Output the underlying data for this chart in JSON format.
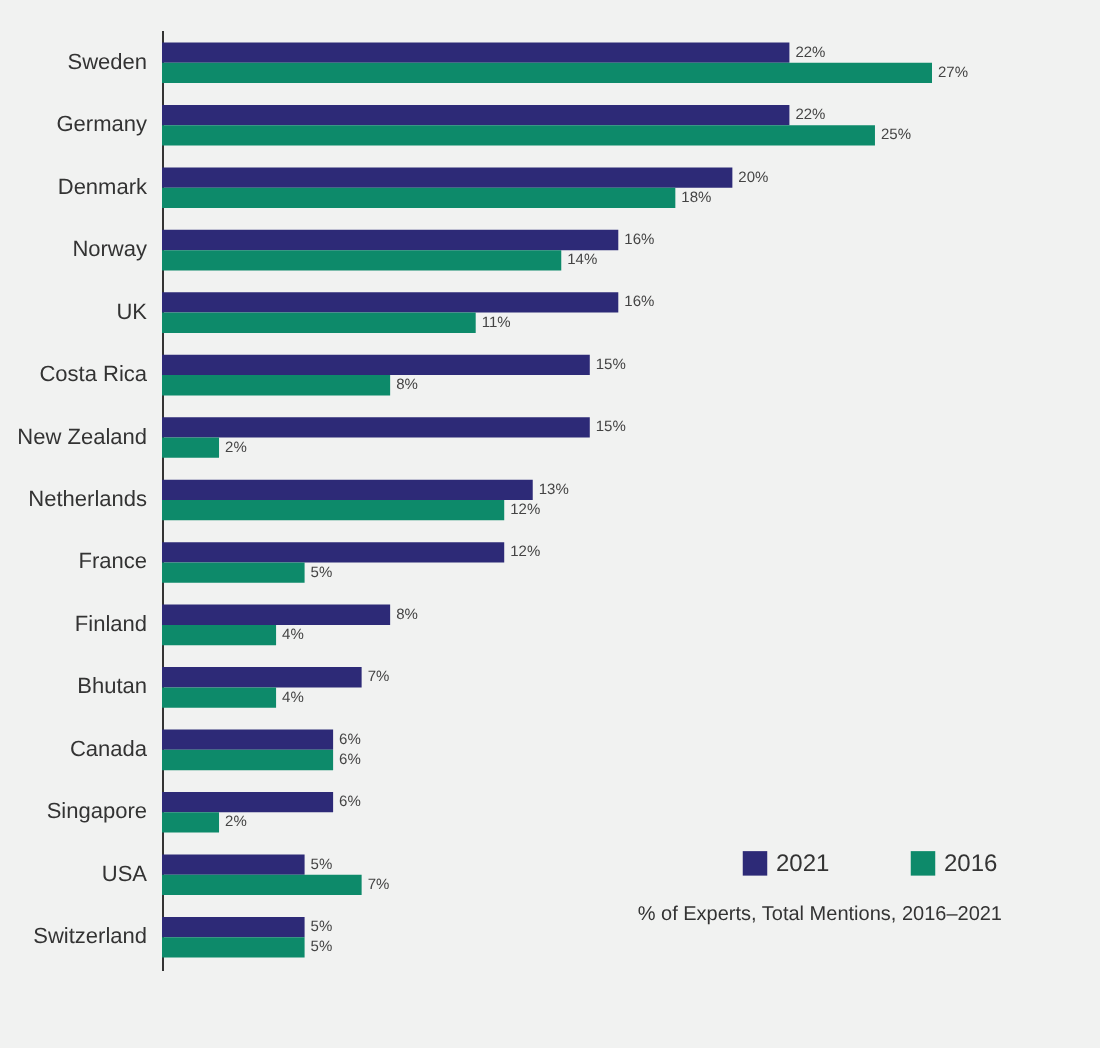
{
  "chart_data": {
    "type": "bar",
    "orientation": "horizontal",
    "categories": [
      "Sweden",
      "Germany",
      "Denmark",
      "Norway",
      "UK",
      "Costa Rica",
      "New Zealand",
      "Netherlands",
      "France",
      "Finland",
      "Bhutan",
      "Canada",
      "Singapore",
      "USA",
      "Switzerland"
    ],
    "series": [
      {
        "name": "2021",
        "color": "#2d2a77",
        "values": [
          22,
          22,
          20,
          16,
          16,
          15,
          15,
          13,
          12,
          8,
          7,
          6,
          6,
          5,
          5
        ],
        "value_labels": [
          "22%",
          "22%",
          "20%",
          "16%",
          "16%",
          "15%",
          "15%",
          "13%",
          "12%",
          "8%",
          "7%",
          "6%",
          "6%",
          "5%",
          "5%"
        ]
      },
      {
        "name": "2016",
        "color": "#0d8a6a",
        "values": [
          27,
          25,
          18,
          14,
          11,
          8,
          2,
          12,
          5,
          4,
          4,
          6,
          2,
          7,
          5
        ],
        "value_labels": [
          "27%",
          "25%",
          "18%",
          "14%",
          "11%",
          "8%",
          "2%",
          "12%",
          "5%",
          "4%",
          "4%",
          "6%",
          "2%",
          "7%",
          "5%"
        ]
      }
    ],
    "legend": "bottom right",
    "annotations": [
      "% of Experts, Total Mentions, 2016–2021"
    ]
  }
}
